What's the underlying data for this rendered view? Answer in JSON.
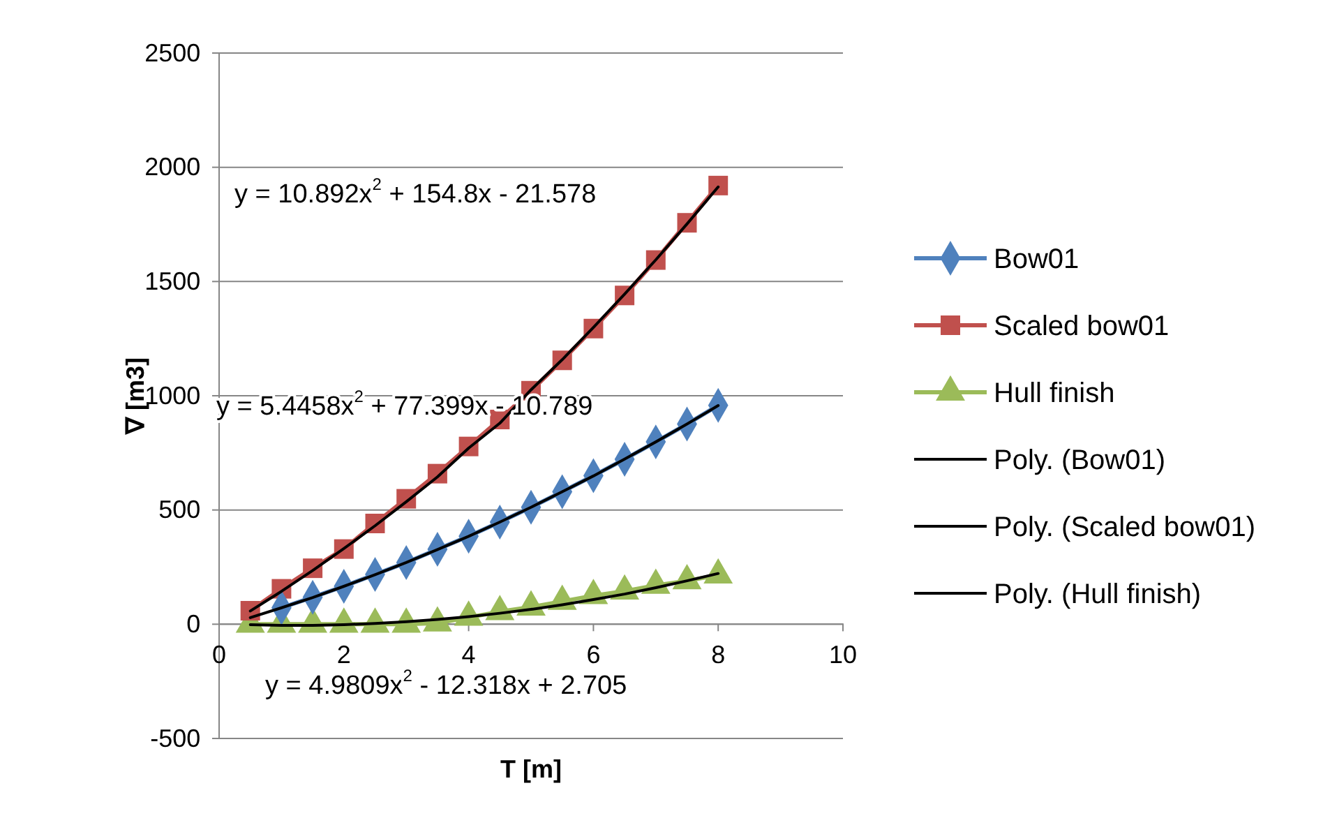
{
  "chart_data": {
    "type": "line",
    "xlabel": "T [m]",
    "ylabel": "∇ [m3]",
    "xlim": [
      0,
      10
    ],
    "xticks": [
      0,
      2,
      4,
      6,
      8,
      10
    ],
    "ylim": [
      -500,
      2500
    ],
    "yticks": [
      -500,
      0,
      500,
      1000,
      1500,
      2000,
      2500
    ],
    "grid": "y",
    "legend": "right",
    "series": [
      {
        "name": "Bow01",
        "color": "#4f81bd",
        "marker": "diamond",
        "x": [
          1,
          1.5,
          2,
          2.5,
          3,
          3.5,
          4,
          4.5,
          5,
          5.5,
          6,
          6.5,
          7,
          7.5,
          8
        ],
        "values": [
          72,
          118,
          166,
          218,
          270,
          328,
          385,
          447,
          512,
          580,
          650,
          722,
          798,
          876,
          958
        ]
      },
      {
        "name": "Scaled bow01",
        "color": "#c0504d",
        "marker": "square",
        "x": [
          0.5,
          1,
          1.5,
          2,
          2.5,
          3,
          3.5,
          4,
          4.5,
          5,
          5.5,
          6,
          6.5,
          7,
          7.5,
          8
        ],
        "values": [
          59,
          155,
          245,
          329,
          441,
          549,
          659,
          778,
          896,
          1022,
          1155,
          1294,
          1439,
          1594,
          1757,
          1920
        ]
      },
      {
        "name": "Hull finish",
        "color": "#9bbb59",
        "marker": "triangle",
        "x": [
          0.5,
          1,
          1.5,
          2,
          2.5,
          3,
          3.5,
          4,
          4.5,
          5,
          5.5,
          6,
          6.5,
          7,
          7.5,
          8
        ],
        "values": [
          0,
          0,
          0,
          0,
          0,
          0,
          5,
          30,
          55,
          75,
          100,
          125,
          145,
          170,
          190,
          215
        ]
      },
      {
        "name": "Poly. (Bow01)",
        "color": "#000000",
        "marker": "none",
        "x": [
          0.5,
          1,
          1.5,
          2,
          2.5,
          3,
          3.5,
          4,
          4.5,
          5,
          5.5,
          6,
          6.5,
          7,
          7.5,
          8
        ],
        "values": [
          29,
          72,
          117,
          166,
          217,
          270,
          327,
          385,
          447,
          512,
          580,
          649,
          723,
          798,
          876,
          957
        ]
      },
      {
        "name": "Poly. (Scaled bow01)",
        "color": "#000000",
        "marker": "none",
        "x": [
          0.5,
          1,
          1.5,
          2,
          2.5,
          3,
          3.5,
          4,
          4.5,
          5,
          5.5,
          6,
          6.5,
          7,
          7.5,
          8
        ],
        "values": [
          58,
          144,
          235,
          331,
          431,
          536,
          645,
          771,
          880,
          1026,
          1158,
          1299,
          1445,
          1595,
          1752,
          1914
        ]
      },
      {
        "name": "Poly. (Hull finish)",
        "color": "#000000",
        "marker": "none",
        "x": [
          0.5,
          1,
          1.5,
          2,
          2.5,
          3,
          3.5,
          4,
          4.5,
          5,
          5.5,
          6,
          6.5,
          7,
          7.5,
          8
        ],
        "values": [
          -2,
          -5,
          -5,
          -2,
          3,
          11,
          21,
          33,
          48,
          65,
          85,
          108,
          132,
          160,
          190,
          222
        ]
      }
    ],
    "annotations": [
      "y = 10.892x$^{2}$ + 154.8x - 21.578",
      "y = 5.4458x$^{2}$ + 77.399x - 10.789",
      "y = 4.9809x$^{2}$ - 12.318x + 2.705"
    ]
  }
}
